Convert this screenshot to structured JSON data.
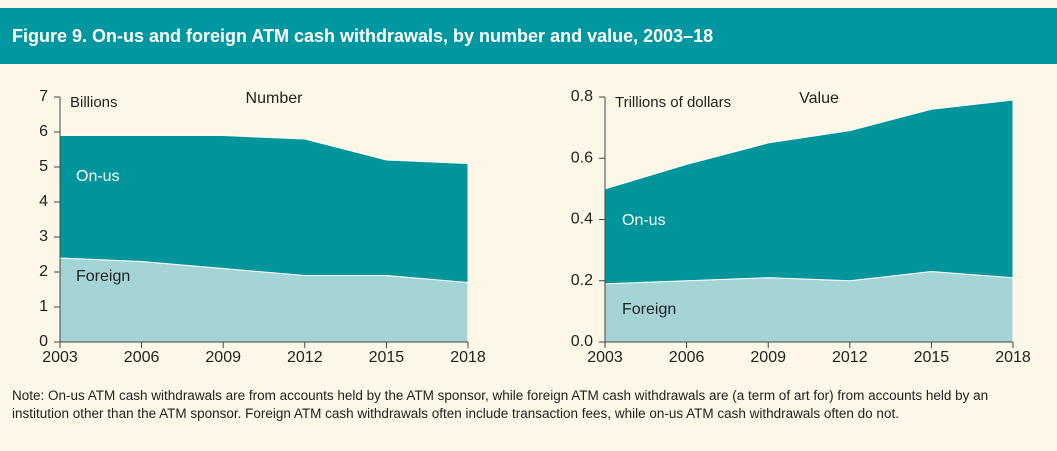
{
  "figure": {
    "title": "Figure 9. On-us and foreign ATM cash withdrawals, by number and value, 2003–18",
    "note": "Note: On-us ATM cash withdrawals are from accounts held by the ATM sponsor, while foreign ATM cash withdrawals are (a term of art for) from accounts held by an institution other than the ATM sponsor. Foreign ATM cash withdrawals often include transaction fees, while on-us ATM cash withdrawals often do not."
  },
  "chart_data": [
    {
      "type": "stacked_area",
      "title": "Number",
      "ylabel": "Billions",
      "x": [
        2003,
        2006,
        2009,
        2012,
        2015,
        2018
      ],
      "series": [
        {
          "name": "Foreign",
          "color": "#a5d4d7",
          "values": [
            2.4,
            2.3,
            2.1,
            1.9,
            1.9,
            1.7
          ]
        },
        {
          "name": "On-us",
          "color": "#00959b",
          "values": [
            3.5,
            3.6,
            3.8,
            3.9,
            3.3,
            3.4
          ]
        }
      ],
      "xlim": [
        2003,
        2018
      ],
      "xticks": [
        2003,
        2006,
        2009,
        2012,
        2015,
        2018
      ],
      "ylim": [
        0,
        7
      ],
      "yticks": [
        0,
        1,
        2,
        3,
        4,
        5,
        6,
        7
      ],
      "grid": false
    },
    {
      "type": "stacked_area",
      "title": "Value",
      "ylabel": "Trillions of dollars",
      "x": [
        2003,
        2006,
        2009,
        2012,
        2015,
        2018
      ],
      "series": [
        {
          "name": "Foreign",
          "color": "#a5d4d7",
          "values": [
            0.19,
            0.2,
            0.21,
            0.2,
            0.23,
            0.21
          ]
        },
        {
          "name": "On-us",
          "color": "#00959b",
          "values": [
            0.31,
            0.38,
            0.44,
            0.49,
            0.53,
            0.58
          ]
        }
      ],
      "xlim": [
        2003,
        2018
      ],
      "xticks": [
        2003,
        2006,
        2009,
        2012,
        2015,
        2018
      ],
      "ylim": [
        0,
        0.8
      ],
      "yticks": [
        {
          "value": 0,
          "label": "0.0"
        },
        0.2,
        0.4,
        0.6,
        0.8
      ],
      "grid": false
    }
  ]
}
